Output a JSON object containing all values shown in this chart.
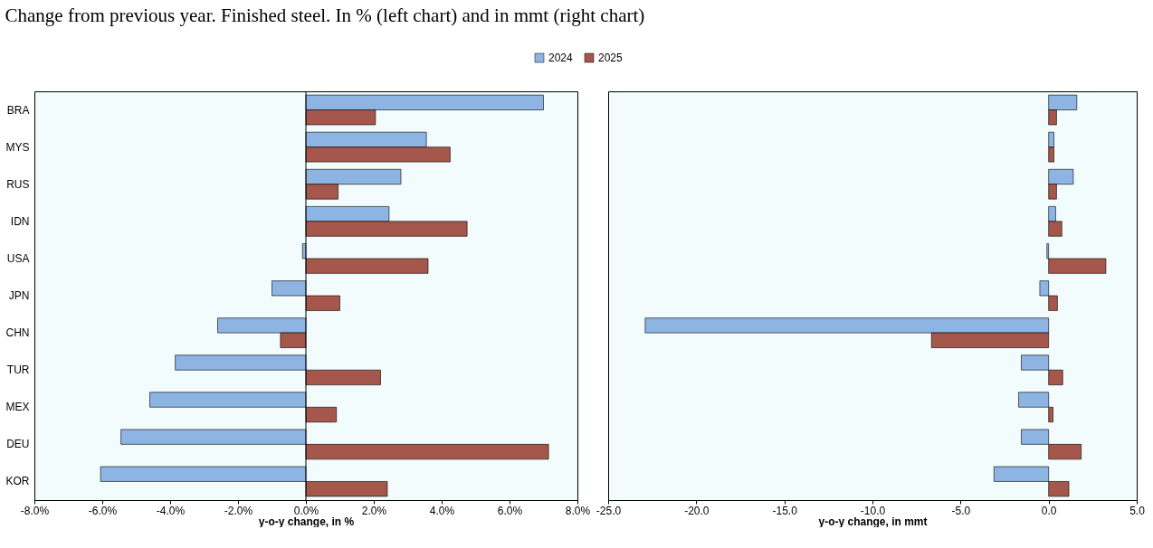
{
  "chart_data": [
    {
      "type": "bar",
      "orientation": "horizontal",
      "title": "Change from previous year. Finished steel. In % (left chart) and in mmt (right chart)",
      "xlabel": "y-o-y change, in %",
      "categories": [
        "BRA",
        "MYS",
        "RUS",
        "IDN",
        "USA",
        "JPN",
        "CHN",
        "TUR",
        "MEX",
        "DEU",
        "KOR"
      ],
      "series": [
        {
          "name": "2024",
          "color": "#8db4e2",
          "values": [
            7.0,
            3.55,
            2.8,
            2.45,
            -0.1,
            -1.0,
            -2.6,
            -3.85,
            -4.6,
            -5.45,
            -6.05
          ]
        },
        {
          "name": "2025",
          "color": "#a5574b",
          "values": [
            2.05,
            4.25,
            0.95,
            4.75,
            3.6,
            1.0,
            -0.75,
            2.2,
            0.9,
            7.15,
            2.4
          ]
        }
      ],
      "xlim": [
        -8,
        8
      ],
      "xticks": [
        {
          "value": -8,
          "label": "-8.0%"
        },
        {
          "value": -6,
          "label": "-6.0%"
        },
        {
          "value": -4,
          "label": "-4.0%"
        },
        {
          "value": -2,
          "label": "-2.0%"
        },
        {
          "value": 0,
          "label": "0.0%"
        },
        {
          "value": 2,
          "label": "2.0%"
        },
        {
          "value": 4,
          "label": "4.0%"
        },
        {
          "value": 6,
          "label": "6.0%"
        },
        {
          "value": 8,
          "label": "8.0%"
        }
      ],
      "ref_lines": [
        {
          "axis": "x",
          "value": 0
        }
      ],
      "legend": "top",
      "grid": false
    },
    {
      "type": "bar",
      "orientation": "horizontal",
      "xlabel": "y-o-y change, in mmt",
      "categories": [
        null,
        null,
        null,
        null,
        null,
        null,
        null,
        null,
        null,
        null,
        null
      ],
      "series": [
        {
          "name": "2024",
          "color": "#8db4e2",
          "values": [
            1.6,
            0.3,
            1.4,
            0.4,
            -0.1,
            -0.5,
            -22.9,
            -1.55,
            -1.7,
            -1.55,
            -3.1
          ]
        },
        {
          "name": "2025",
          "color": "#a5574b",
          "values": [
            0.45,
            0.3,
            0.45,
            0.75,
            3.25,
            0.5,
            -6.65,
            0.8,
            0.25,
            1.85,
            1.15
          ]
        }
      ],
      "xlim": [
        -25,
        5
      ],
      "xticks": [
        {
          "value": -25,
          "label": "-25.0"
        },
        {
          "value": -20,
          "label": "-20.0"
        },
        {
          "value": -15,
          "label": "-15.0"
        },
        {
          "value": -10,
          "label": "-10.0"
        },
        {
          "value": -5,
          "label": "-5.0"
        },
        {
          "value": 0,
          "label": "0.0"
        },
        {
          "value": 5,
          "label": "5.0"
        }
      ],
      "legend": false,
      "grid": false
    }
  ]
}
